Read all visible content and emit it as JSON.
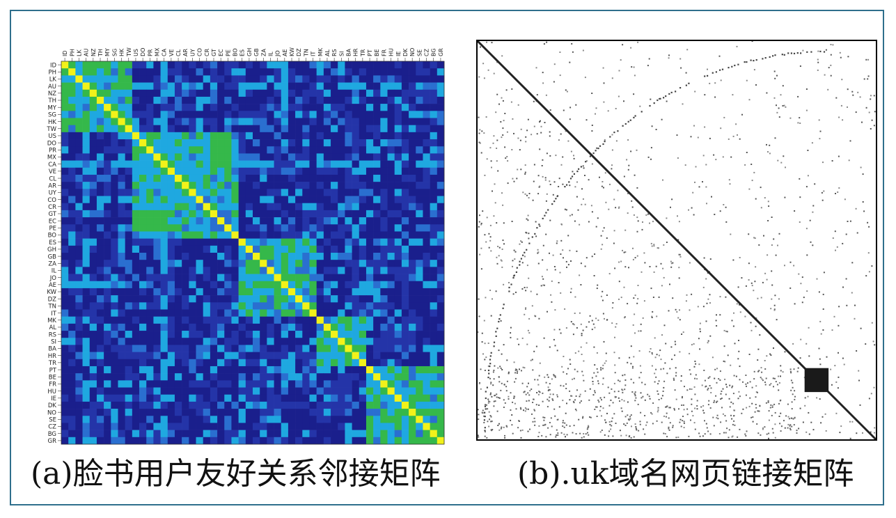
{
  "figure": {
    "panel_a": {
      "caption": "(a)脸书用户友好关系邻接矩阵",
      "countries": [
        "ID",
        "PH",
        "LK",
        "AU",
        "NZ",
        "TH",
        "MY",
        "SG",
        "HK",
        "TW",
        "US",
        "DO",
        "PR",
        "MX",
        "CA",
        "VE",
        "CL",
        "AR",
        "UY",
        "CO",
        "CR",
        "GT",
        "EC",
        "PE",
        "BO",
        "ES",
        "GH",
        "GB",
        "ZA",
        "IL",
        "JO",
        "AE",
        "KW",
        "DZ",
        "TN",
        "IT",
        "MK",
        "AL",
        "RS",
        "SI",
        "BA",
        "HR",
        "TR",
        "PT",
        "BE",
        "FR",
        "HU",
        "IE",
        "DK",
        "NO",
        "SE",
        "CZ",
        "BG",
        "GR"
      ],
      "clusters": [
        [
          0,
          9
        ],
        [
          10,
          24
        ],
        [
          25,
          35
        ],
        [
          36,
          42
        ],
        [
          43,
          53
        ]
      ],
      "colors": {
        "low": "#1a1f8c",
        "mid": "#1fa8e0",
        "high": "#35b84a",
        "top": "#f2f21a"
      }
    },
    "panel_b": {
      "caption": "(b).uk域名网页链接矩阵",
      "dense_block": {
        "start": 0.82,
        "end": 0.88
      },
      "colors": {
        "dot": "#333333",
        "block": "#1a1a1a",
        "border": "#000000"
      }
    }
  }
}
